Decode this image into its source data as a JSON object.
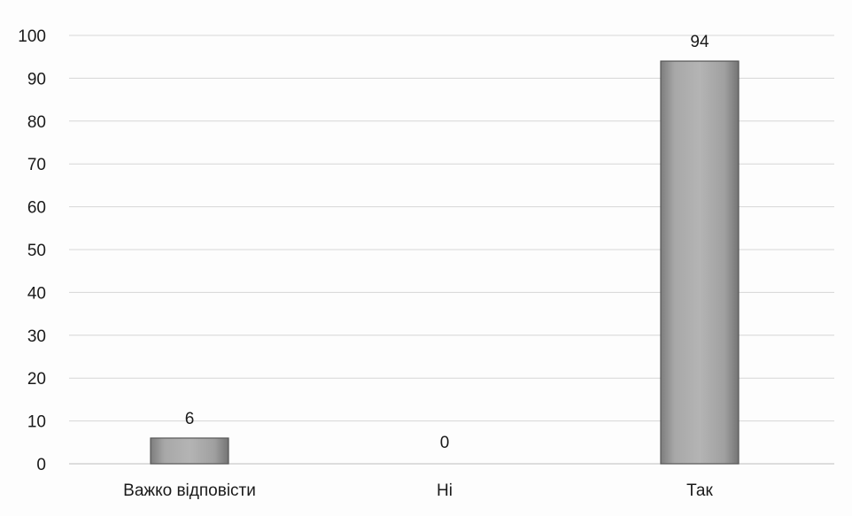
{
  "chart_data": {
    "type": "bar",
    "title": "",
    "xlabel": "",
    "ylabel": "",
    "categories": [
      "Важко відповісти",
      "Ні",
      "Так"
    ],
    "values": [
      6,
      0,
      94
    ],
    "data_labels": [
      "6",
      "0",
      "94"
    ],
    "ylim": [
      0,
      100
    ],
    "yticks": [
      0,
      10,
      20,
      30,
      40,
      50,
      60,
      70,
      80,
      90,
      100
    ],
    "ytick_labels": [
      "0",
      "10",
      "20",
      "30",
      "40",
      "50",
      "60",
      "70",
      "80",
      "90",
      "100"
    ],
    "grid": true,
    "legend": "none",
    "bar_color": "#9a9a9a"
  }
}
